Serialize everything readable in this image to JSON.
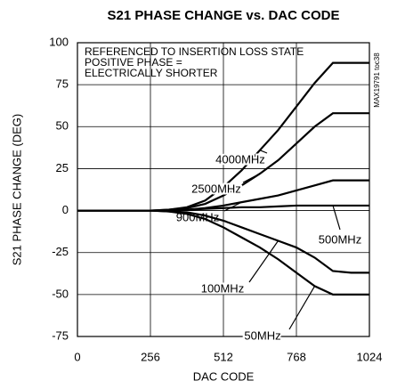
{
  "chart_data": {
    "type": "line",
    "title": "S21 PHASE CHANGE vs. DAC CODE",
    "xlabel": "DAC CODE",
    "ylabel": "S21 PHASE CHANGE (DEG)",
    "annotations": [
      "REFERENCED TO INSERTION LOSS STATE",
      "POSITIVE PHASE =",
      "ELECTRICALLY SHORTER"
    ],
    "figure_id": "MAX19791 toc38",
    "x": [
      0,
      64,
      128,
      192,
      256,
      320,
      384,
      448,
      512,
      576,
      640,
      704,
      768,
      832,
      896,
      960,
      1024
    ],
    "series": [
      {
        "name": "4000MHz",
        "color": "#000000",
        "values": [
          0,
          0,
          0,
          0,
          0,
          0.5,
          2,
          6,
          14,
          24,
          36,
          48,
          62,
          76,
          88,
          88,
          88
        ]
      },
      {
        "name": "2500MHz",
        "color": "#000000",
        "values": [
          0,
          0,
          0,
          0,
          0,
          0.5,
          1.5,
          4,
          9,
          15,
          22,
          30,
          40,
          50,
          58,
          58,
          58
        ]
      },
      {
        "name": "900MHz",
        "color": "#000000",
        "values": [
          0,
          0,
          0,
          0,
          0,
          0,
          0.5,
          1.5,
          3,
          5,
          7,
          9,
          12,
          15,
          18,
          18,
          18
        ]
      },
      {
        "name": "500MHz",
        "color": "#000000",
        "values": [
          0,
          0,
          0,
          0,
          0,
          0,
          0.5,
          1,
          1.5,
          2,
          2,
          2.5,
          3,
          3,
          3,
          3,
          3
        ]
      },
      {
        "name": "100MHz",
        "color": "#000000",
        "values": [
          0,
          0,
          0,
          0,
          0,
          -0.5,
          -1,
          -3,
          -6,
          -10,
          -14,
          -18,
          -22,
          -28,
          -36,
          -37,
          -37
        ]
      },
      {
        "name": "50MHz",
        "color": "#000000",
        "values": [
          0,
          0,
          0,
          0,
          0,
          -0.5,
          -2,
          -5,
          -10,
          -16,
          -22,
          -29,
          -37,
          -45,
          -50,
          -50,
          -50
        ]
      }
    ],
    "xlim": [
      0,
      1024
    ],
    "xticks": [
      0,
      256,
      512,
      768,
      1024
    ],
    "ylim": [
      -75,
      100
    ],
    "yticks": [
      -75,
      -50,
      -25,
      0,
      25,
      50,
      75,
      100
    ],
    "grid": true
  }
}
